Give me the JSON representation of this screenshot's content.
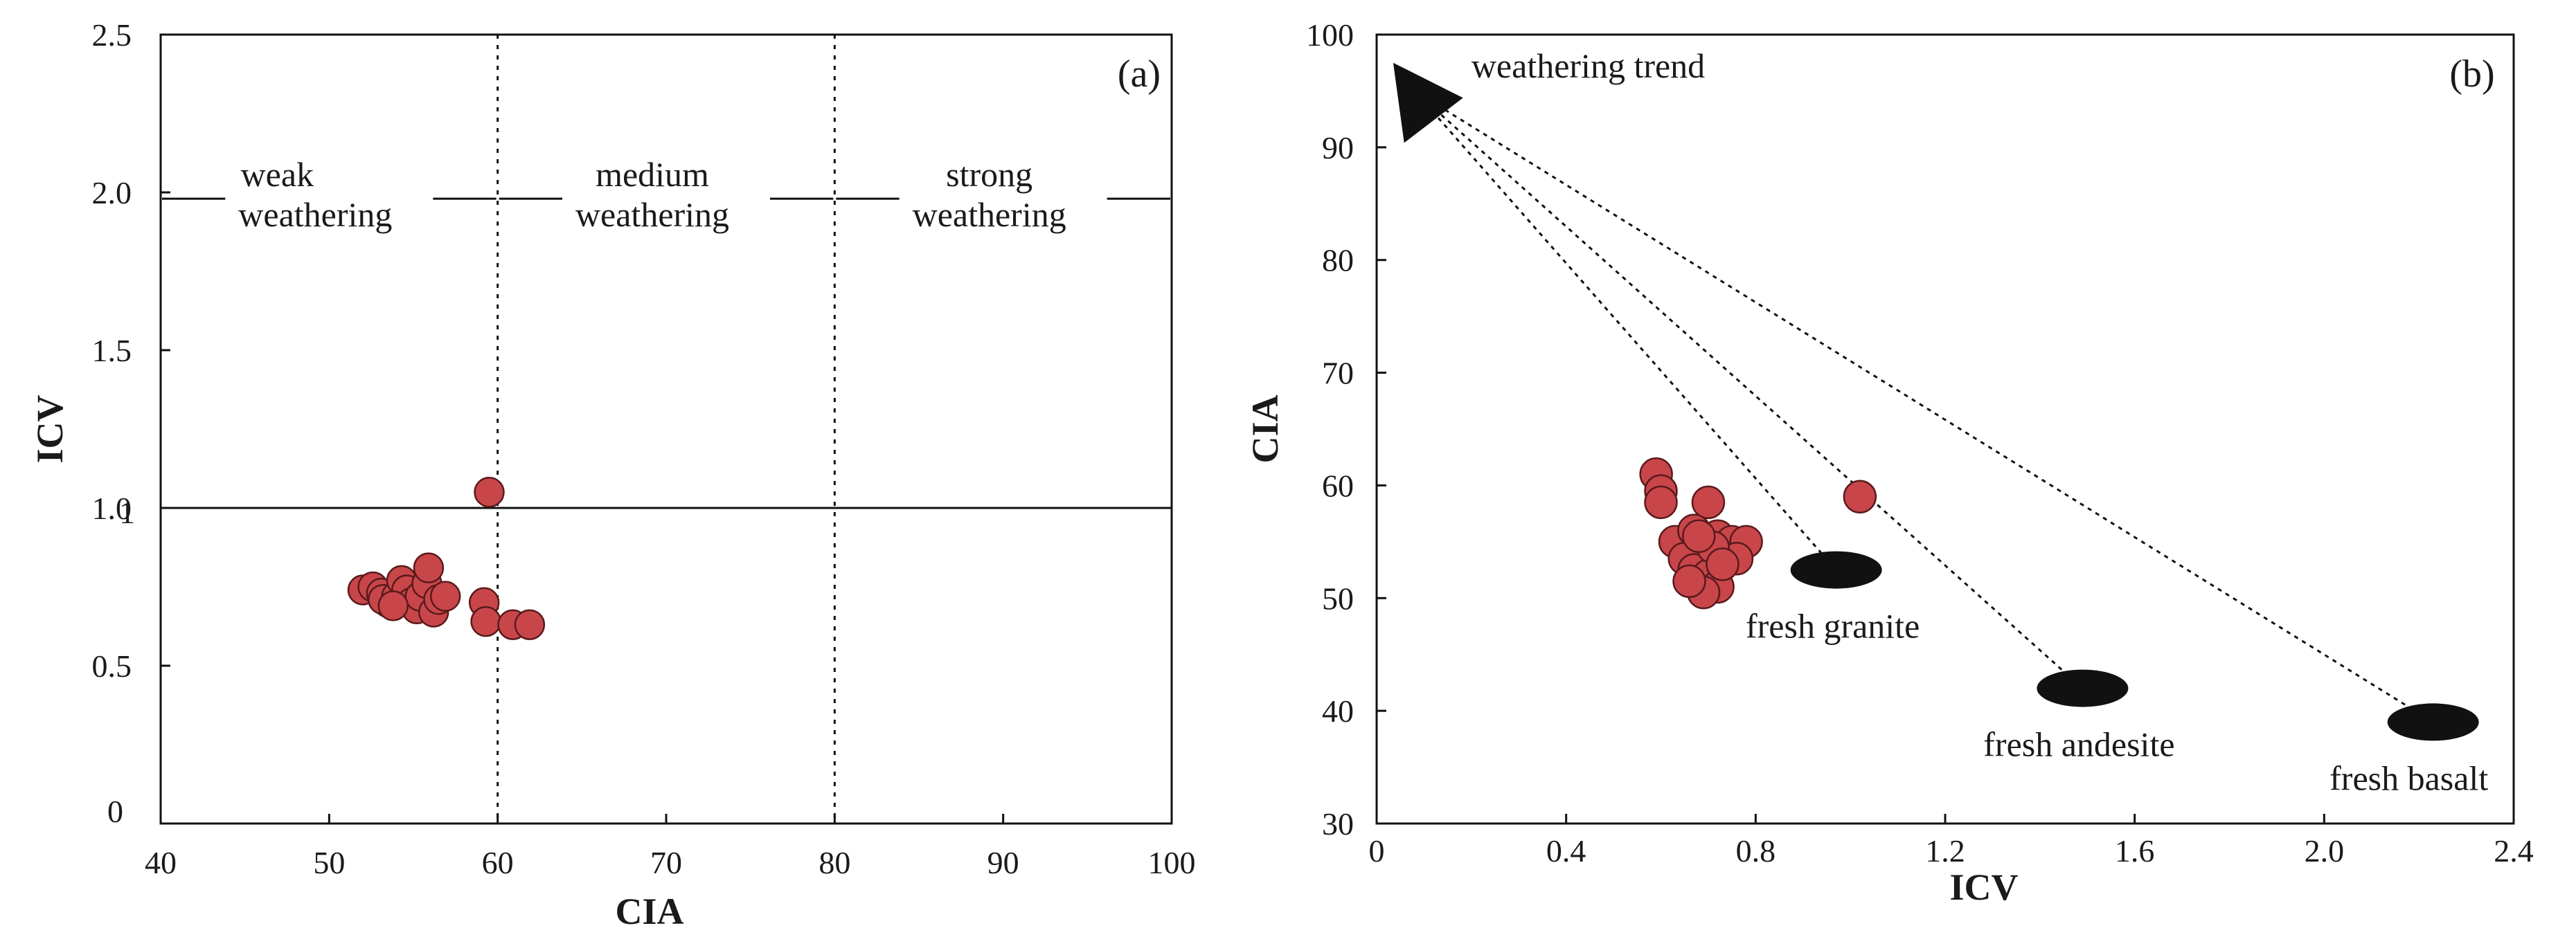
{
  "chart_data": [
    {
      "type": "scatter",
      "panel_label": "(a)",
      "xlabel": "CIA",
      "ylabel": "ICV",
      "xlim": [
        40,
        100
      ],
      "ylim": [
        0,
        2.5
      ],
      "x_ticks": [
        40,
        50,
        60,
        70,
        80,
        90,
        100
      ],
      "y_ticks": [
        0,
        0.5,
        1.0,
        1.5,
        2.0,
        2.5
      ],
      "x_tick_labels": [
        "40",
        "50",
        "60",
        "70",
        "80",
        "90",
        "100"
      ],
      "y_tick_labels": [
        "0",
        "0.5",
        "1.0",
        "1.5",
        "2.0",
        "2.5"
      ],
      "origin_label": "0",
      "stray_tick_mark": "1",
      "reference_lines": {
        "vertical_dotted_x": [
          60,
          80
        ],
        "horizontal_solid_y": 1.0
      },
      "zones": [
        {
          "name": "weak",
          "line1": "weak",
          "line2": "weathering",
          "from": 40,
          "to": 60
        },
        {
          "name": "medium",
          "line1": "medium",
          "line2": "weathering",
          "from": 60,
          "to": 80
        },
        {
          "name": "strong",
          "line1": "strong",
          "line2": "weathering",
          "from": 80,
          "to": 100
        }
      ],
      "zone_arrow_y": 1.98,
      "points": [
        {
          "x": 59.5,
          "y": 1.05
        },
        {
          "x": 52.0,
          "y": 0.74
        },
        {
          "x": 52.6,
          "y": 0.75
        },
        {
          "x": 53.1,
          "y": 0.73
        },
        {
          "x": 53.5,
          "y": 0.7
        },
        {
          "x": 53.2,
          "y": 0.71
        },
        {
          "x": 54.0,
          "y": 0.72
        },
        {
          "x": 54.3,
          "y": 0.77
        },
        {
          "x": 54.6,
          "y": 0.74
        },
        {
          "x": 54.9,
          "y": 0.7
        },
        {
          "x": 55.2,
          "y": 0.68
        },
        {
          "x": 55.4,
          "y": 0.72
        },
        {
          "x": 55.8,
          "y": 0.76
        },
        {
          "x": 55.9,
          "y": 0.81
        },
        {
          "x": 56.2,
          "y": 0.67
        },
        {
          "x": 56.5,
          "y": 0.71
        },
        {
          "x": 56.9,
          "y": 0.72
        },
        {
          "x": 53.8,
          "y": 0.69
        },
        {
          "x": 59.2,
          "y": 0.7
        },
        {
          "x": 59.3,
          "y": 0.64
        },
        {
          "x": 60.9,
          "y": 0.63
        },
        {
          "x": 61.9,
          "y": 0.63
        }
      ]
    },
    {
      "type": "scatter",
      "panel_label": "(b)",
      "xlabel": "ICV",
      "ylabel": "CIA",
      "xlim": [
        0,
        2.4
      ],
      "ylim": [
        30,
        100
      ],
      "x_ticks": [
        0,
        0.4,
        0.8,
        1.2,
        1.6,
        2.0,
        2.4
      ],
      "y_ticks": [
        30,
        40,
        50,
        60,
        70,
        80,
        90,
        100
      ],
      "x_tick_labels": [
        "0",
        "0.4",
        "0.8",
        "1.2",
        "1.6",
        "2.0",
        "2.4"
      ],
      "y_tick_labels": [
        "30",
        "40",
        "50",
        "60",
        "70",
        "80",
        "90",
        "100"
      ],
      "trend_label": "weathering trend",
      "trend_apex": {
        "x": 0.08,
        "y": 95.0
      },
      "rock_types": [
        {
          "label": "fresh granite",
          "x": 0.97,
          "y": 52.5
        },
        {
          "label": "fresh andesite",
          "x": 1.49,
          "y": 42.0
        },
        {
          "label": "fresh basalt",
          "x": 2.23,
          "y": 39.0
        }
      ],
      "points": [
        {
          "x": 1.02,
          "y": 59.0
        },
        {
          "x": 0.59,
          "y": 61.0
        },
        {
          "x": 0.6,
          "y": 59.5
        },
        {
          "x": 0.6,
          "y": 58.5
        },
        {
          "x": 0.7,
          "y": 58.5
        },
        {
          "x": 0.63,
          "y": 55.0
        },
        {
          "x": 0.67,
          "y": 56.0
        },
        {
          "x": 0.72,
          "y": 55.5
        },
        {
          "x": 0.75,
          "y": 55.0
        },
        {
          "x": 0.78,
          "y": 55.0
        },
        {
          "x": 0.76,
          "y": 53.5
        },
        {
          "x": 0.65,
          "y": 53.5
        },
        {
          "x": 0.67,
          "y": 52.5
        },
        {
          "x": 0.7,
          "y": 52.0
        },
        {
          "x": 0.72,
          "y": 51.0
        },
        {
          "x": 0.69,
          "y": 50.5
        },
        {
          "x": 0.66,
          "y": 51.5
        },
        {
          "x": 0.71,
          "y": 54.5
        },
        {
          "x": 0.73,
          "y": 53.0
        },
        {
          "x": 0.68,
          "y": 55.5
        }
      ]
    }
  ]
}
